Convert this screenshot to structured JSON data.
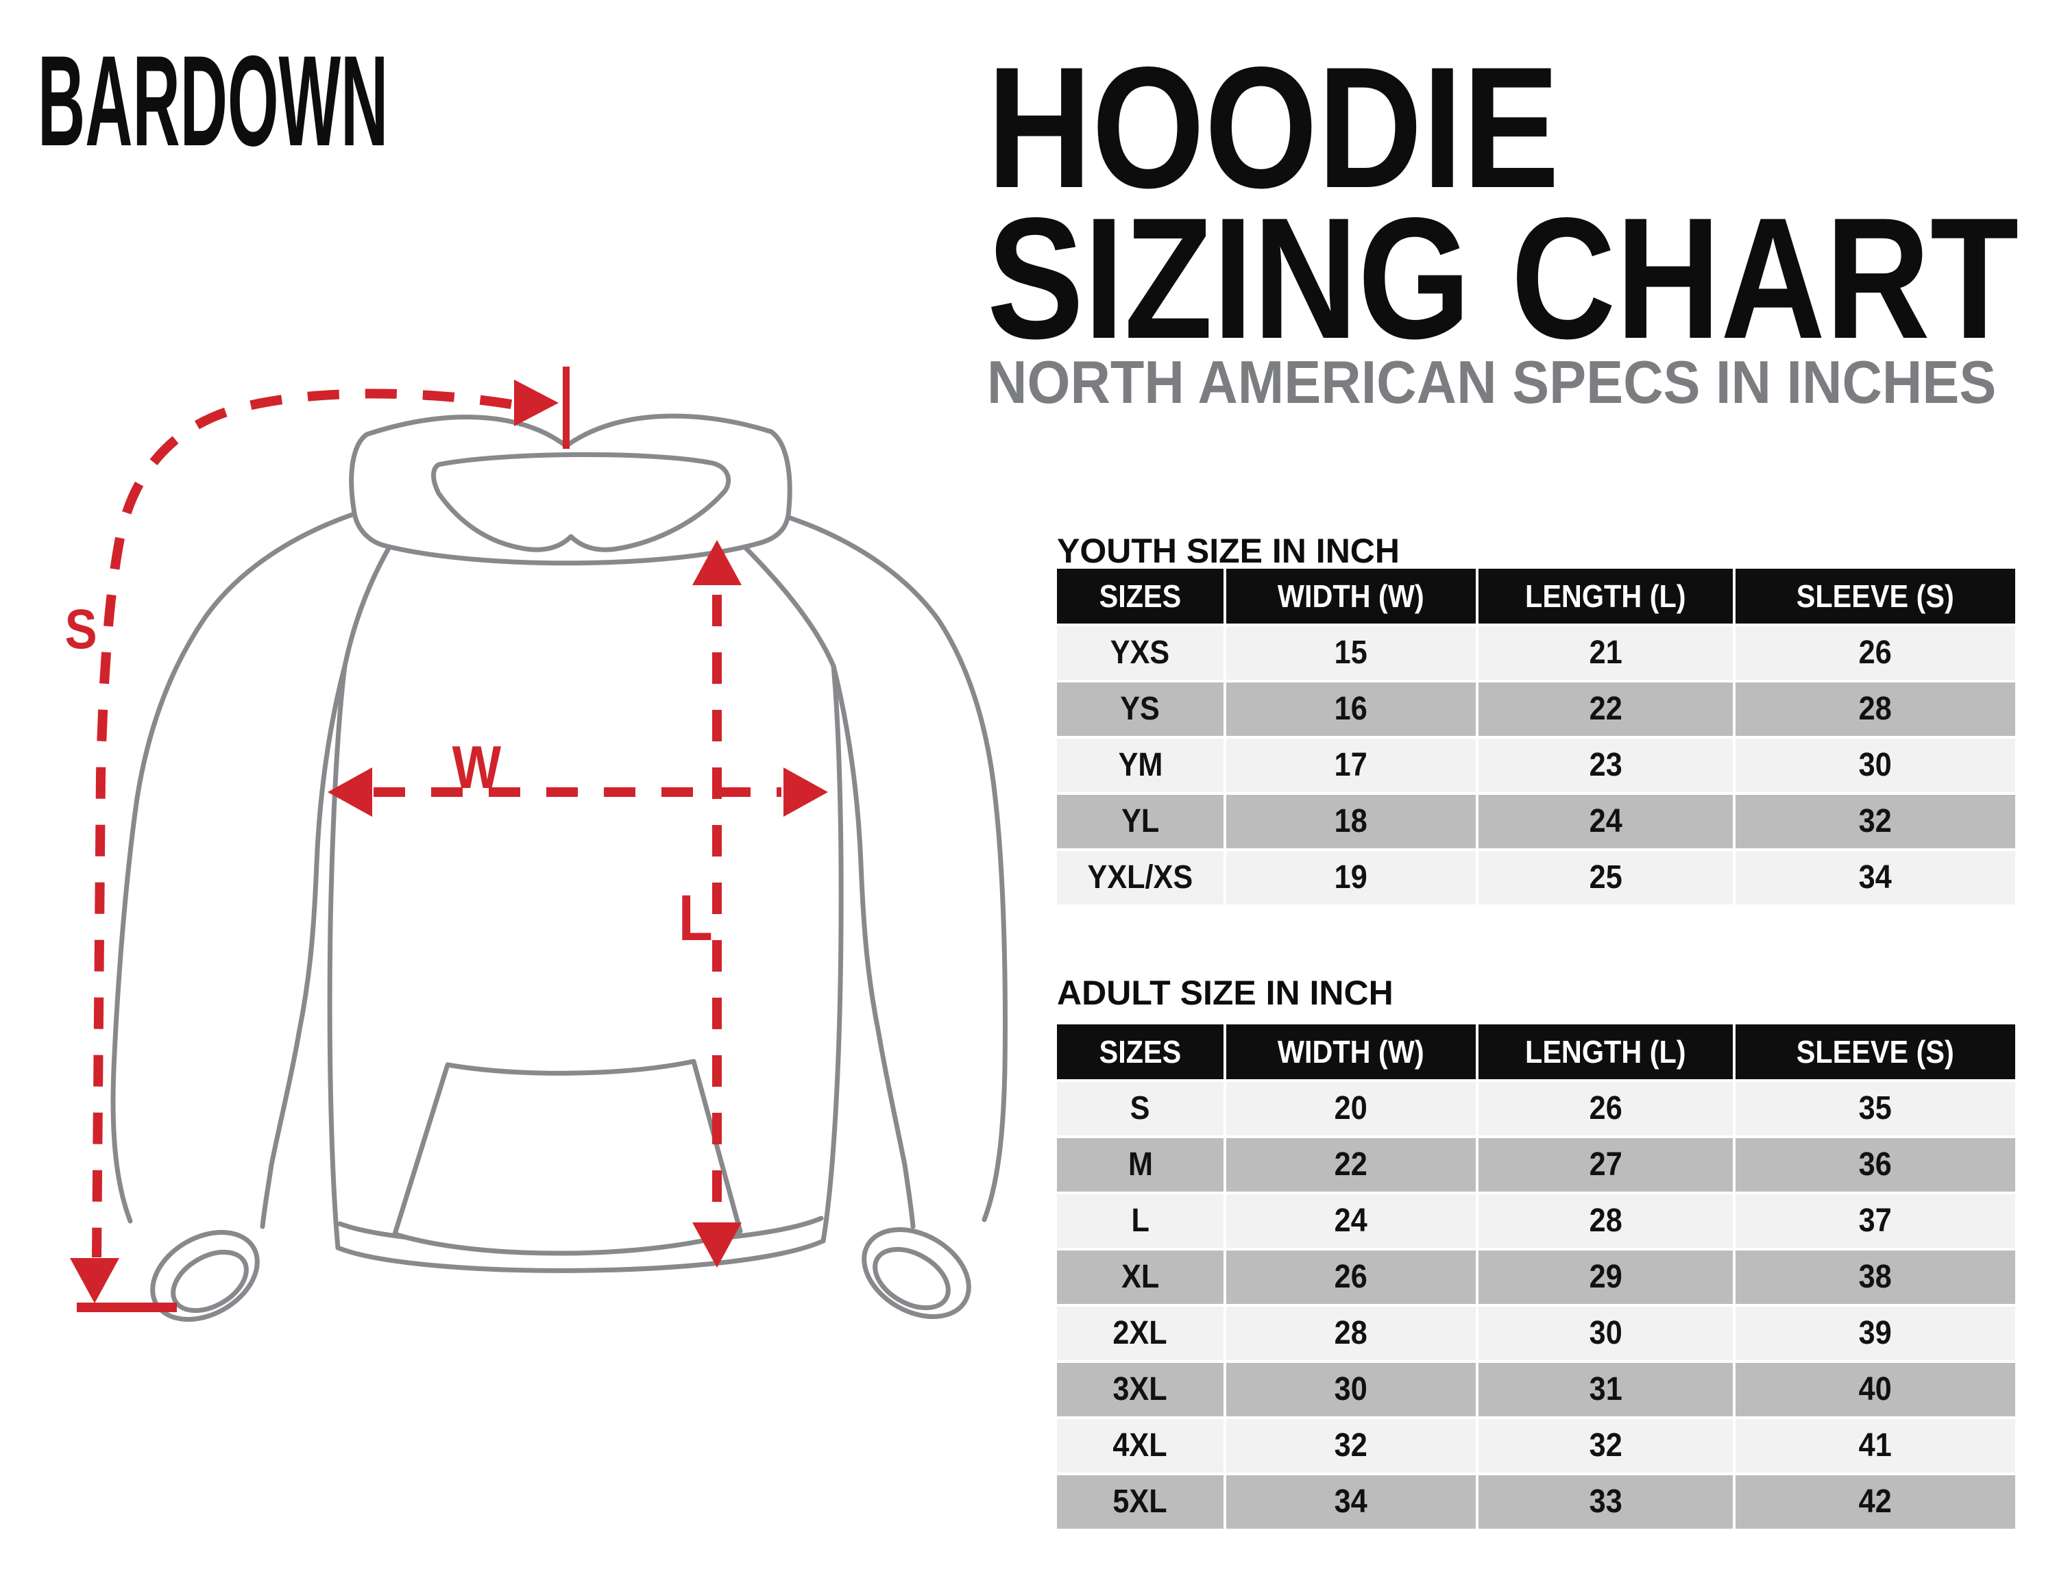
{
  "brand": {
    "logo_text": "BARDOWN"
  },
  "header": {
    "title_line1": "HOODIE",
    "title_line2": "SIZING CHART",
    "subtitle": "NORTH AMERICAN SPECS IN INCHES"
  },
  "diagram": {
    "labels": {
      "sleeve": "S",
      "width": "W",
      "length": "L"
    }
  },
  "colors": {
    "accent_red": "#d1232b",
    "line_gray": "#87898c",
    "title_black": "#0d0d0d",
    "subtitle_gray": "#7b7d80",
    "table_header_bg": "#0e0e0e",
    "table_header_text": "#ffffff",
    "row_light": "#f2f2f2",
    "row_dark": "#bcbcbd"
  },
  "tables": {
    "youth": {
      "title": "YOUTH SIZE IN INCH",
      "columns": [
        "SIZES",
        "WIDTH (W)",
        "LENGTH (L)",
        "SLEEVE (S)"
      ],
      "rows": [
        {
          "size": "YXS",
          "width": "15",
          "length": "21",
          "sleeve": "26"
        },
        {
          "size": "YS",
          "width": "16",
          "length": "22",
          "sleeve": "28"
        },
        {
          "size": "YM",
          "width": "17",
          "length": "23",
          "sleeve": "30"
        },
        {
          "size": "YL",
          "width": "18",
          "length": "24",
          "sleeve": "32"
        },
        {
          "size": "YXL/XS",
          "width": "19",
          "length": "25",
          "sleeve": "34"
        }
      ]
    },
    "adult": {
      "title": "ADULT SIZE IN INCH",
      "columns": [
        "SIZES",
        "WIDTH (W)",
        "LENGTH (L)",
        "SLEEVE (S)"
      ],
      "rows": [
        {
          "size": "S",
          "width": "20",
          "length": "26",
          "sleeve": "35"
        },
        {
          "size": "M",
          "width": "22",
          "length": "27",
          "sleeve": "36"
        },
        {
          "size": "L",
          "width": "24",
          "length": "28",
          "sleeve": "37"
        },
        {
          "size": "XL",
          "width": "26",
          "length": "29",
          "sleeve": "38"
        },
        {
          "size": "2XL",
          "width": "28",
          "length": "30",
          "sleeve": "39"
        },
        {
          "size": "3XL",
          "width": "30",
          "length": "31",
          "sleeve": "40"
        },
        {
          "size": "4XL",
          "width": "32",
          "length": "32",
          "sleeve": "41"
        },
        {
          "size": "5XL",
          "width": "34",
          "length": "33",
          "sleeve": "42"
        }
      ]
    }
  }
}
